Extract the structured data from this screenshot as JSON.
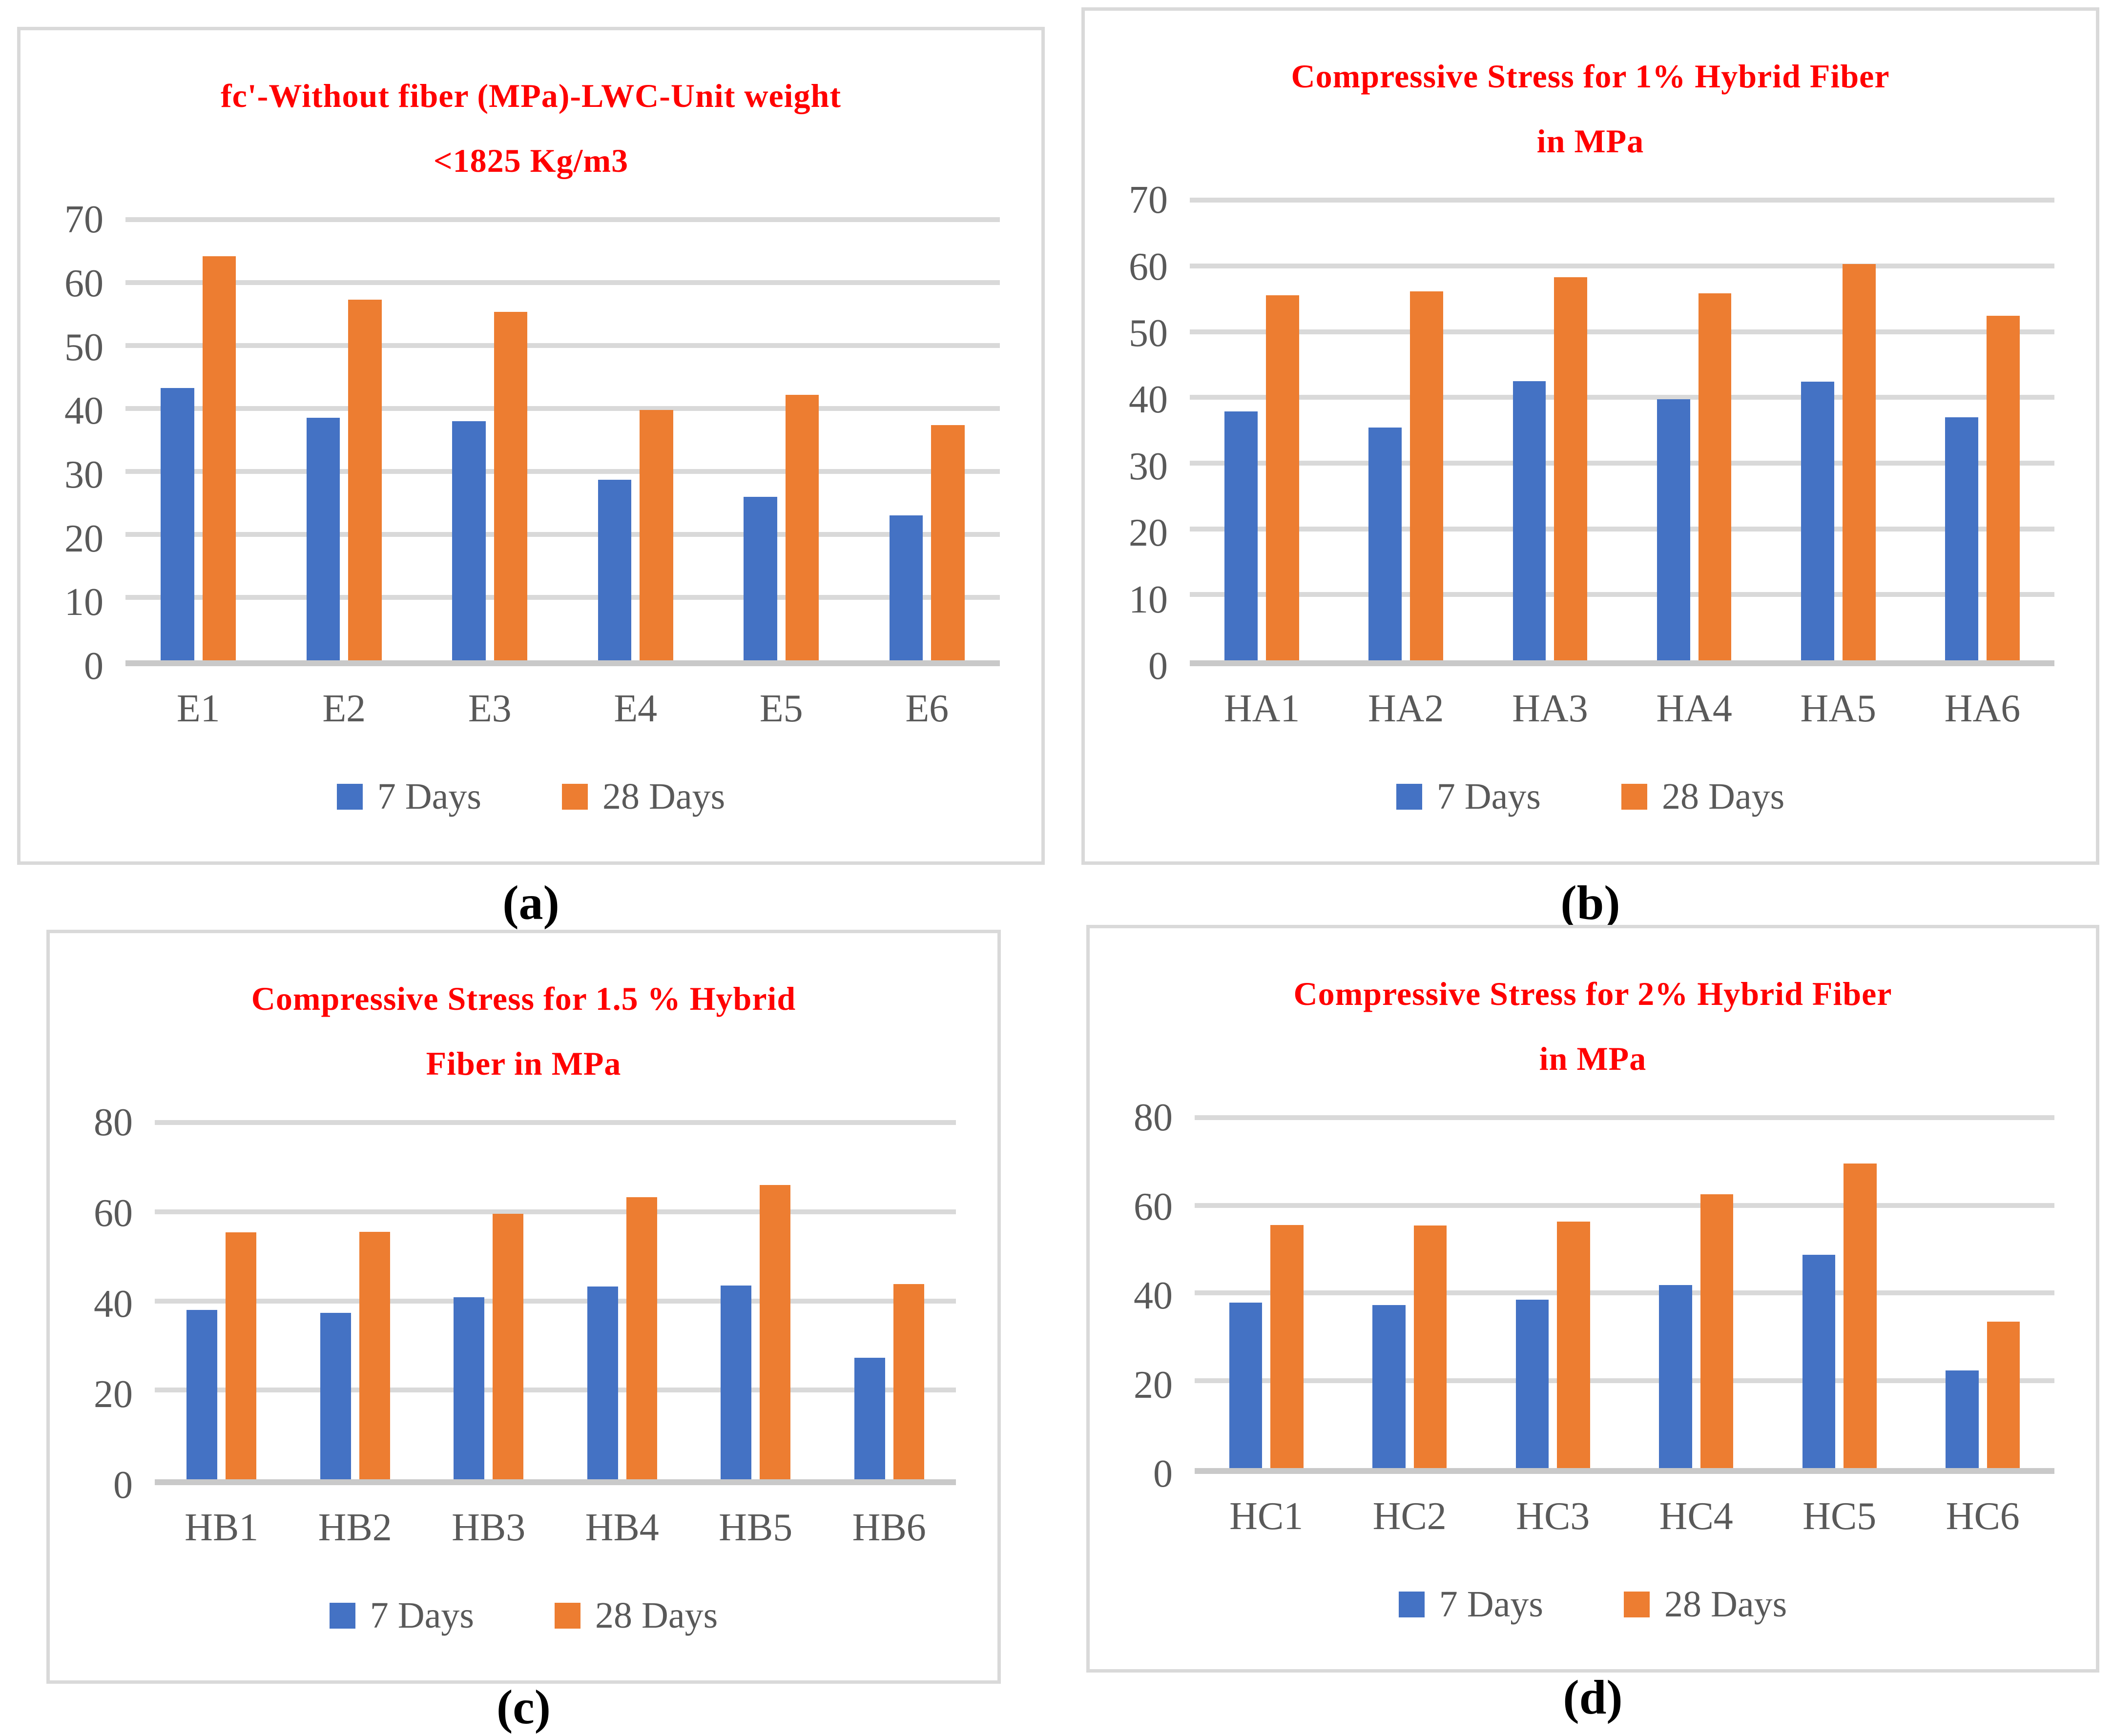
{
  "page": {
    "background": "#FFFFFF"
  },
  "palette": {
    "series_7_days": "#4472C4",
    "series_28_days": "#ED7D31",
    "title_color": "#FF0000",
    "axis_text": "#595959",
    "gridline": "#D9D9D9",
    "baseline": "#C9C9C9",
    "panel_border": "#D9D9D9",
    "sublabel_color": "#000000"
  },
  "legend_labels": [
    "7 Days",
    "28 Days"
  ],
  "chart_data": [
    {
      "id": "a",
      "type": "bar",
      "title": "fc'-Without fiber (MPa)-LWC-Unit weight <1825 Kg/m3",
      "title_lines": [
        "fc'-Without fiber (MPa)-LWC-Unit weight",
        "<1825 Kg/m3"
      ],
      "sublabel": "(a)",
      "categories": [
        "E1",
        "E2",
        "E3",
        "E4",
        "E5",
        "E6"
      ],
      "series": [
        {
          "name": "7 Days",
          "color": "#4472C4",
          "values": [
            43.3,
            38.5,
            38.0,
            28.7,
            26.0,
            23.0
          ]
        },
        {
          "name": "28 Days",
          "color": "#ED7D31",
          "values": [
            64.2,
            57.3,
            55.4,
            39.8,
            42.2,
            37.4
          ]
        }
      ],
      "xlabel": "",
      "ylabel": "",
      "ylim": [
        0,
        70
      ],
      "yticks": [
        0,
        10,
        20,
        30,
        40,
        50,
        60,
        70
      ],
      "grid": true,
      "legend_position": "bottom"
    },
    {
      "id": "b",
      "type": "bar",
      "title": "Compressive Stress for 1% Hybrid Fiber in MPa",
      "title_lines": [
        "Compressive Stress for 1% Hybrid Fiber",
        "in MPa"
      ],
      "sublabel": "(b)",
      "categories": [
        "HA1",
        "HA2",
        "HA3",
        "HA4",
        "HA5",
        "HA6"
      ],
      "series": [
        {
          "name": "7 Days",
          "color": "#4472C4",
          "values": [
            37.9,
            35.4,
            42.5,
            39.7,
            42.4,
            37.0
          ]
        },
        {
          "name": "28 Days",
          "color": "#ED7D31",
          "values": [
            55.5,
            56.1,
            58.3,
            55.8,
            60.3,
            52.4
          ]
        }
      ],
      "xlabel": "",
      "ylabel": "",
      "ylim": [
        0,
        70
      ],
      "yticks": [
        0,
        10,
        20,
        30,
        40,
        50,
        60,
        70
      ],
      "grid": true,
      "legend_position": "bottom"
    },
    {
      "id": "c",
      "type": "bar",
      "title": "Compressive Stress for 1.5 % Hybrid Fiber in MPa",
      "title_lines": [
        "Compressive Stress for 1.5 % Hybrid",
        "Fiber in MPa"
      ],
      "sublabel": "(c)",
      "categories": [
        "HB1",
        "HB2",
        "HB3",
        "HB4",
        "HB5",
        "HB6"
      ],
      "series": [
        {
          "name": "7 Days",
          "color": "#4472C4",
          "values": [
            38.0,
            37.3,
            40.8,
            43.2,
            43.5,
            27.3
          ]
        },
        {
          "name": "28 Days",
          "color": "#ED7D31",
          "values": [
            55.4,
            55.5,
            59.5,
            63.3,
            66.0,
            43.8
          ]
        }
      ],
      "xlabel": "",
      "ylabel": "",
      "ylim": [
        0,
        80
      ],
      "yticks": [
        0,
        20,
        40,
        60,
        80
      ],
      "grid": true,
      "legend_position": "bottom"
    },
    {
      "id": "d",
      "type": "bar",
      "title": "Compressive Stress for 2% Hybrid Fiber in MPa",
      "title_lines": [
        "Compressive Stress for 2% Hybrid Fiber",
        "in MPa"
      ],
      "sublabel": "(d)",
      "categories": [
        "HC1",
        "HC2",
        "HC3",
        "HC4",
        "HC5",
        "HC6"
      ],
      "series": [
        {
          "name": "7 Days",
          "color": "#4472C4",
          "values": [
            37.8,
            37.2,
            38.5,
            41.8,
            48.7,
            22.3
          ]
        },
        {
          "name": "28 Days",
          "color": "#ED7D31",
          "values": [
            55.5,
            55.4,
            56.3,
            62.5,
            69.5,
            33.4
          ]
        }
      ],
      "xlabel": "",
      "ylabel": "",
      "ylim": [
        0,
        80
      ],
      "yticks": [
        0,
        20,
        40,
        60,
        80
      ],
      "grid": true,
      "legend_position": "bottom"
    }
  ]
}
